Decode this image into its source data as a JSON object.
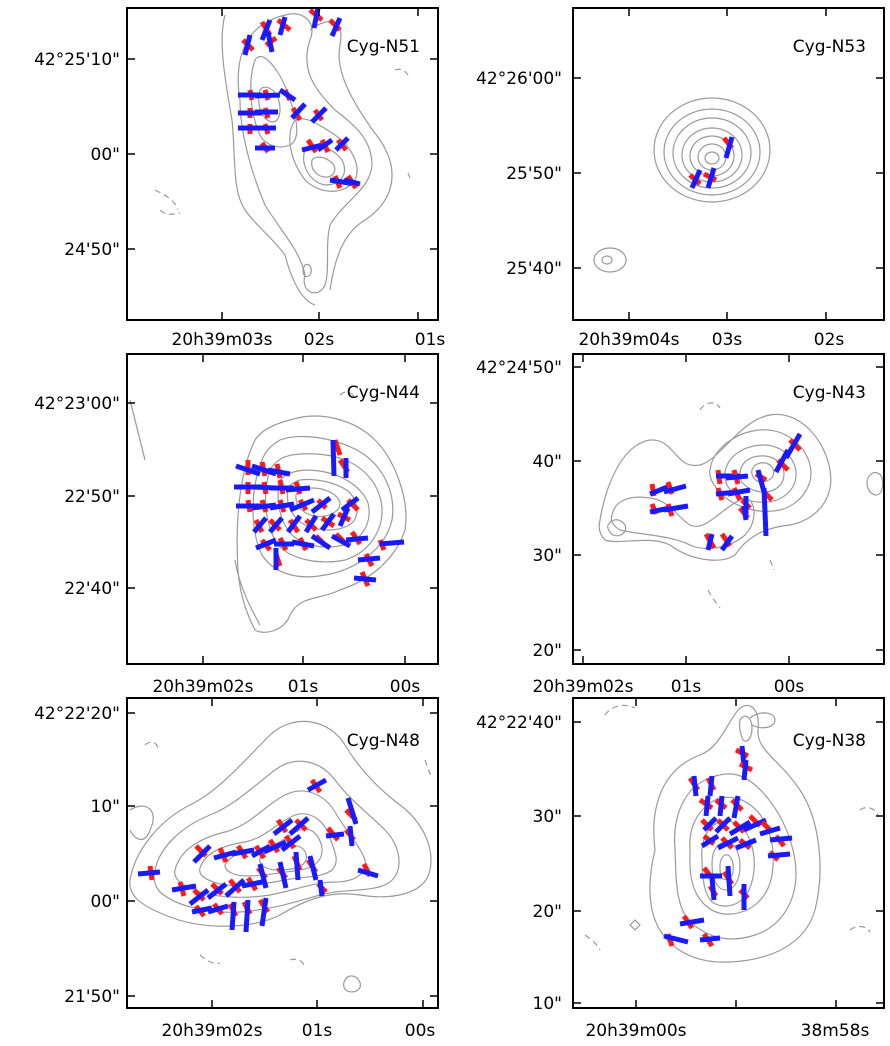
{
  "panels": [
    {
      "id": "cyg-n51",
      "title": "Cyg-N51",
      "yticks": [
        "42°25'10\"",
        "00\"",
        "24'50\""
      ],
      "xticks": [
        "20h39m03s",
        "02s",
        "01s"
      ]
    },
    {
      "id": "cyg-n53",
      "title": "Cyg-N53",
      "yticks": [
        "42°26'00\"",
        "25'50\"",
        "25'40\""
      ],
      "xticks": [
        "20h39m04s",
        "03s",
        "02s"
      ]
    },
    {
      "id": "cyg-n44",
      "title": "Cyg-N44",
      "yticks": [
        "42°23'00\"",
        "22'50\"",
        "22'40\""
      ],
      "xticks": [
        "20h39m02s",
        "01s",
        "00s"
      ]
    },
    {
      "id": "cyg-n43",
      "title": "Cyg-N43",
      "yticks": [
        "42°24'50\"",
        "40\"",
        "30\"",
        "20\""
      ],
      "xticks": [
        "20h39m02s",
        "01s",
        "00s"
      ]
    },
    {
      "id": "cyg-n48",
      "title": "Cyg-N48",
      "yticks": [
        "42°22'20\"",
        "10\"",
        "00\"",
        "21'50\""
      ],
      "xticks": [
        "20h39m02s",
        "01s",
        "00s"
      ]
    },
    {
      "id": "cyg-n38",
      "title": "Cyg-N38",
      "yticks": [
        "42°22'40\"",
        "30\"",
        "20\"",
        "10\""
      ],
      "xticks": [
        "20h39m00s",
        "38m58s"
      ]
    }
  ],
  "colors": {
    "frame": "#000000",
    "contour": "#9a9a9a",
    "vector_red": "#ff1a1a",
    "vector_blue": "#1a1aff"
  }
}
